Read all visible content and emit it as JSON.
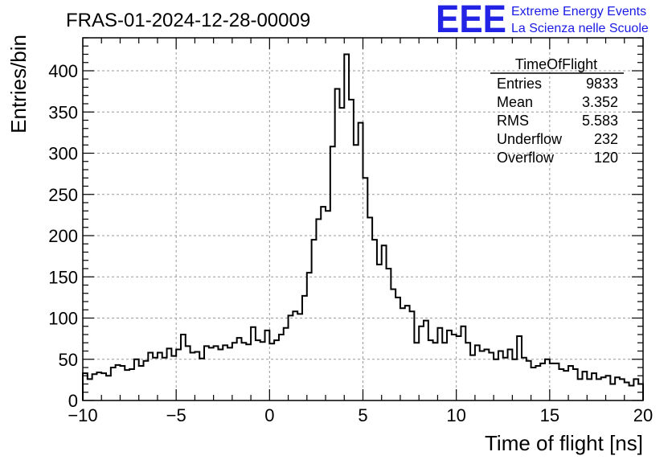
{
  "chart_data": {
    "type": "histogram",
    "title": "FRAS-01-2024-12-28-00009",
    "xlabel": "Time of flight [ns]",
    "ylabel": "Entries/bin",
    "xlim": [
      -10,
      20
    ],
    "ylim": [
      0,
      440
    ],
    "grid": true,
    "bin_width": 0.25,
    "x_ticks": [
      -10,
      -5,
      0,
      5,
      10,
      15,
      20
    ],
    "x_tick_labels": [
      "−10",
      "−5",
      "0",
      "5",
      "10",
      "15",
      "20"
    ],
    "y_ticks": [
      0,
      50,
      100,
      150,
      200,
      250,
      300,
      350,
      400
    ],
    "y_tick_labels": [
      "0",
      "50",
      "100",
      "150",
      "200",
      "250",
      "300",
      "350",
      "400"
    ],
    "values": [
      33,
      26,
      32,
      34,
      33,
      30,
      40,
      43,
      42,
      37,
      38,
      50,
      42,
      48,
      58,
      52,
      58,
      52,
      63,
      54,
      62,
      80,
      66,
      58,
      59,
      51,
      66,
      64,
      66,
      62,
      67,
      64,
      70,
      76,
      70,
      68,
      89,
      73,
      71,
      85,
      69,
      73,
      80,
      88,
      103,
      108,
      105,
      127,
      155,
      195,
      220,
      235,
      230,
      308,
      378,
      355,
      420,
      365,
      310,
      337,
      270,
      222,
      195,
      165,
      188,
      160,
      135,
      125,
      112,
      115,
      108,
      70,
      90,
      97,
      73,
      70,
      88,
      70,
      85,
      80,
      78,
      90,
      70,
      55,
      67,
      60,
      62,
      58,
      50,
      60,
      52,
      62,
      50,
      78,
      52,
      48,
      40,
      42,
      45,
      50,
      45,
      45,
      38,
      36,
      42,
      38,
      26,
      35,
      26,
      33,
      26,
      28,
      30,
      20,
      28,
      26,
      22,
      18,
      26,
      20
    ],
    "stats": {
      "name": "TimeOfFlight",
      "rows": [
        {
          "label": "Entries",
          "value": "9833"
        },
        {
          "label": "Mean",
          "value": "3.352"
        },
        {
          "label": "RMS",
          "value": "5.583"
        },
        {
          "label": "Underflow",
          "value": "232"
        },
        {
          "label": "Overflow",
          "value": "120"
        }
      ]
    },
    "line_color": "#000000",
    "grid_color": "#9a9a9a"
  },
  "logo": {
    "mark": "EEE",
    "line1": "Extreme Energy Events",
    "line2": "La Scienza nelle Scuole",
    "color": "#2323e6"
  }
}
